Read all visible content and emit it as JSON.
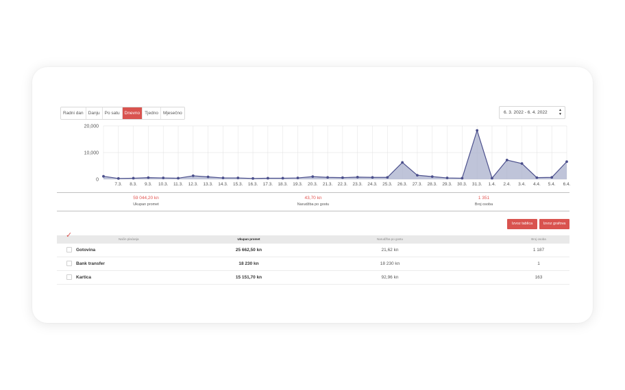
{
  "tabs": [
    {
      "label": "Radni dan",
      "active": false
    },
    {
      "label": "Danju",
      "active": false
    },
    {
      "label": "Po satu",
      "active": false
    },
    {
      "label": "Dnevno",
      "active": true
    },
    {
      "label": "Tjedno",
      "active": false
    },
    {
      "label": "Mjesečno",
      "active": false
    }
  ],
  "date_range": "6. 3. 2022 - 6. 4. 2022",
  "colors": {
    "accent": "#d9534f",
    "line": "#4b4f8c",
    "fill": "#aab0cc"
  },
  "chart_data": {
    "type": "area",
    "x": [
      "6.3.",
      "7.3.",
      "8.3.",
      "9.3.",
      "10.3.",
      "11.3.",
      "12.3.",
      "13.3.",
      "14.3.",
      "15.3.",
      "16.3.",
      "17.3.",
      "18.3.",
      "19.3.",
      "20.3.",
      "21.3.",
      "22.3.",
      "23.3.",
      "24.3.",
      "25.3.",
      "26.3.",
      "27.3.",
      "28.3.",
      "29.3.",
      "30.3.",
      "31.3.",
      "1.4.",
      "2.4.",
      "3.4.",
      "4.4.",
      "5.4.",
      "6.4."
    ],
    "tick_labels": [
      "7.3.",
      "8.3.",
      "9.3.",
      "10.3.",
      "11.3.",
      "12.3.",
      "13.3.",
      "14.3.",
      "15.3.",
      "16.3.",
      "17.3.",
      "18.3.",
      "19.3.",
      "20.3.",
      "21.3.",
      "22.3.",
      "23.3.",
      "24.3.",
      "25.3.",
      "26.3.",
      "27.3.",
      "28.3.",
      "29.3.",
      "30.3.",
      "31.3.",
      "1.4.",
      "2.4.",
      "3.4.",
      "4.4.",
      "5.4.",
      "6.4."
    ],
    "values": [
      1100,
      300,
      400,
      600,
      500,
      400,
      1300,
      900,
      500,
      500,
      300,
      400,
      400,
      500,
      1000,
      700,
      600,
      800,
      700,
      700,
      6300,
      1500,
      1000,
      500,
      400,
      18300,
      400,
      7200,
      5900,
      600,
      700,
      6600
    ],
    "ylim": [
      0,
      20000
    ],
    "yticks": [
      "0",
      "10,000",
      "20,000"
    ],
    "grid": true
  },
  "stats": [
    {
      "value": "59 044,20 kn",
      "label": "Ukupan promet"
    },
    {
      "value": "43,70 kn",
      "label": "Narudžba po gostu"
    },
    {
      "value": "1 351",
      "label": "Broj osoba"
    }
  ],
  "buttons": {
    "export_table": "Izvoz tablica",
    "export_chart": "Izvoz grafova"
  },
  "table": {
    "headers": [
      "Način plaćanja",
      "Ukupan promet",
      "Narudžba po gostu",
      "Broj osoba"
    ],
    "rows": [
      {
        "method": "Gotovina",
        "total": "25 662,50 kn",
        "per_guest": "21,62 kn",
        "persons": "1 187"
      },
      {
        "method": "Bank transfer",
        "total": "18 230 kn",
        "per_guest": "18 230 kn",
        "persons": "1"
      },
      {
        "method": "Kartica",
        "total": "15 151,70 kn",
        "per_guest": "92,96 kn",
        "persons": "163"
      }
    ]
  }
}
